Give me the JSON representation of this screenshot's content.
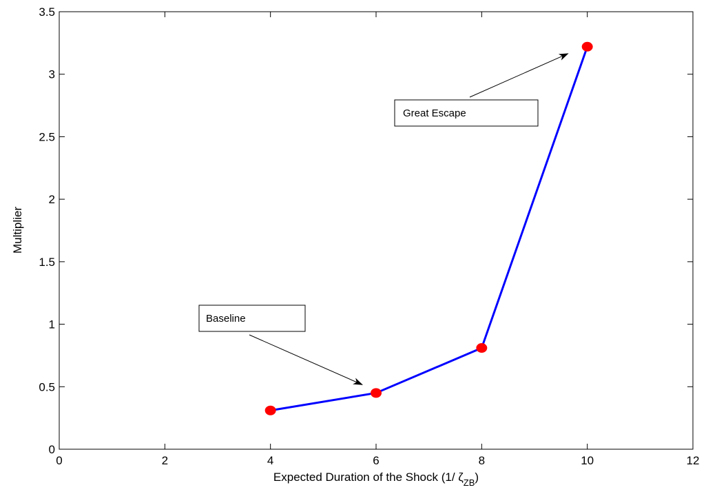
{
  "chart_data": {
    "type": "line",
    "x": [
      4,
      6,
      8,
      10
    ],
    "series": [
      {
        "values": [
          0.31,
          0.45,
          0.81,
          3.22
        ],
        "color": "#0000ff",
        "marker_color": "#ff0000"
      }
    ],
    "xlabel": "Expected Duration of the Shock (1/ ζ",
    "xlabel_sub": "ZB",
    "xlabel_close": ")",
    "ylabel": "Multiplier",
    "xlim": [
      0,
      12
    ],
    "ylim": [
      0,
      3.5
    ],
    "xticks": [
      "0",
      "2",
      "4",
      "6",
      "8",
      "10",
      "12"
    ],
    "yticks": [
      "0",
      "0.5",
      "1",
      "1.5",
      "2",
      "2.5",
      "3",
      "3.5"
    ],
    "grid": false,
    "annotations": [
      {
        "text": "Baseline",
        "target": [
          6,
          0.45
        ]
      },
      {
        "text": "Great Escape",
        "target": [
          10,
          3.22
        ]
      }
    ]
  }
}
